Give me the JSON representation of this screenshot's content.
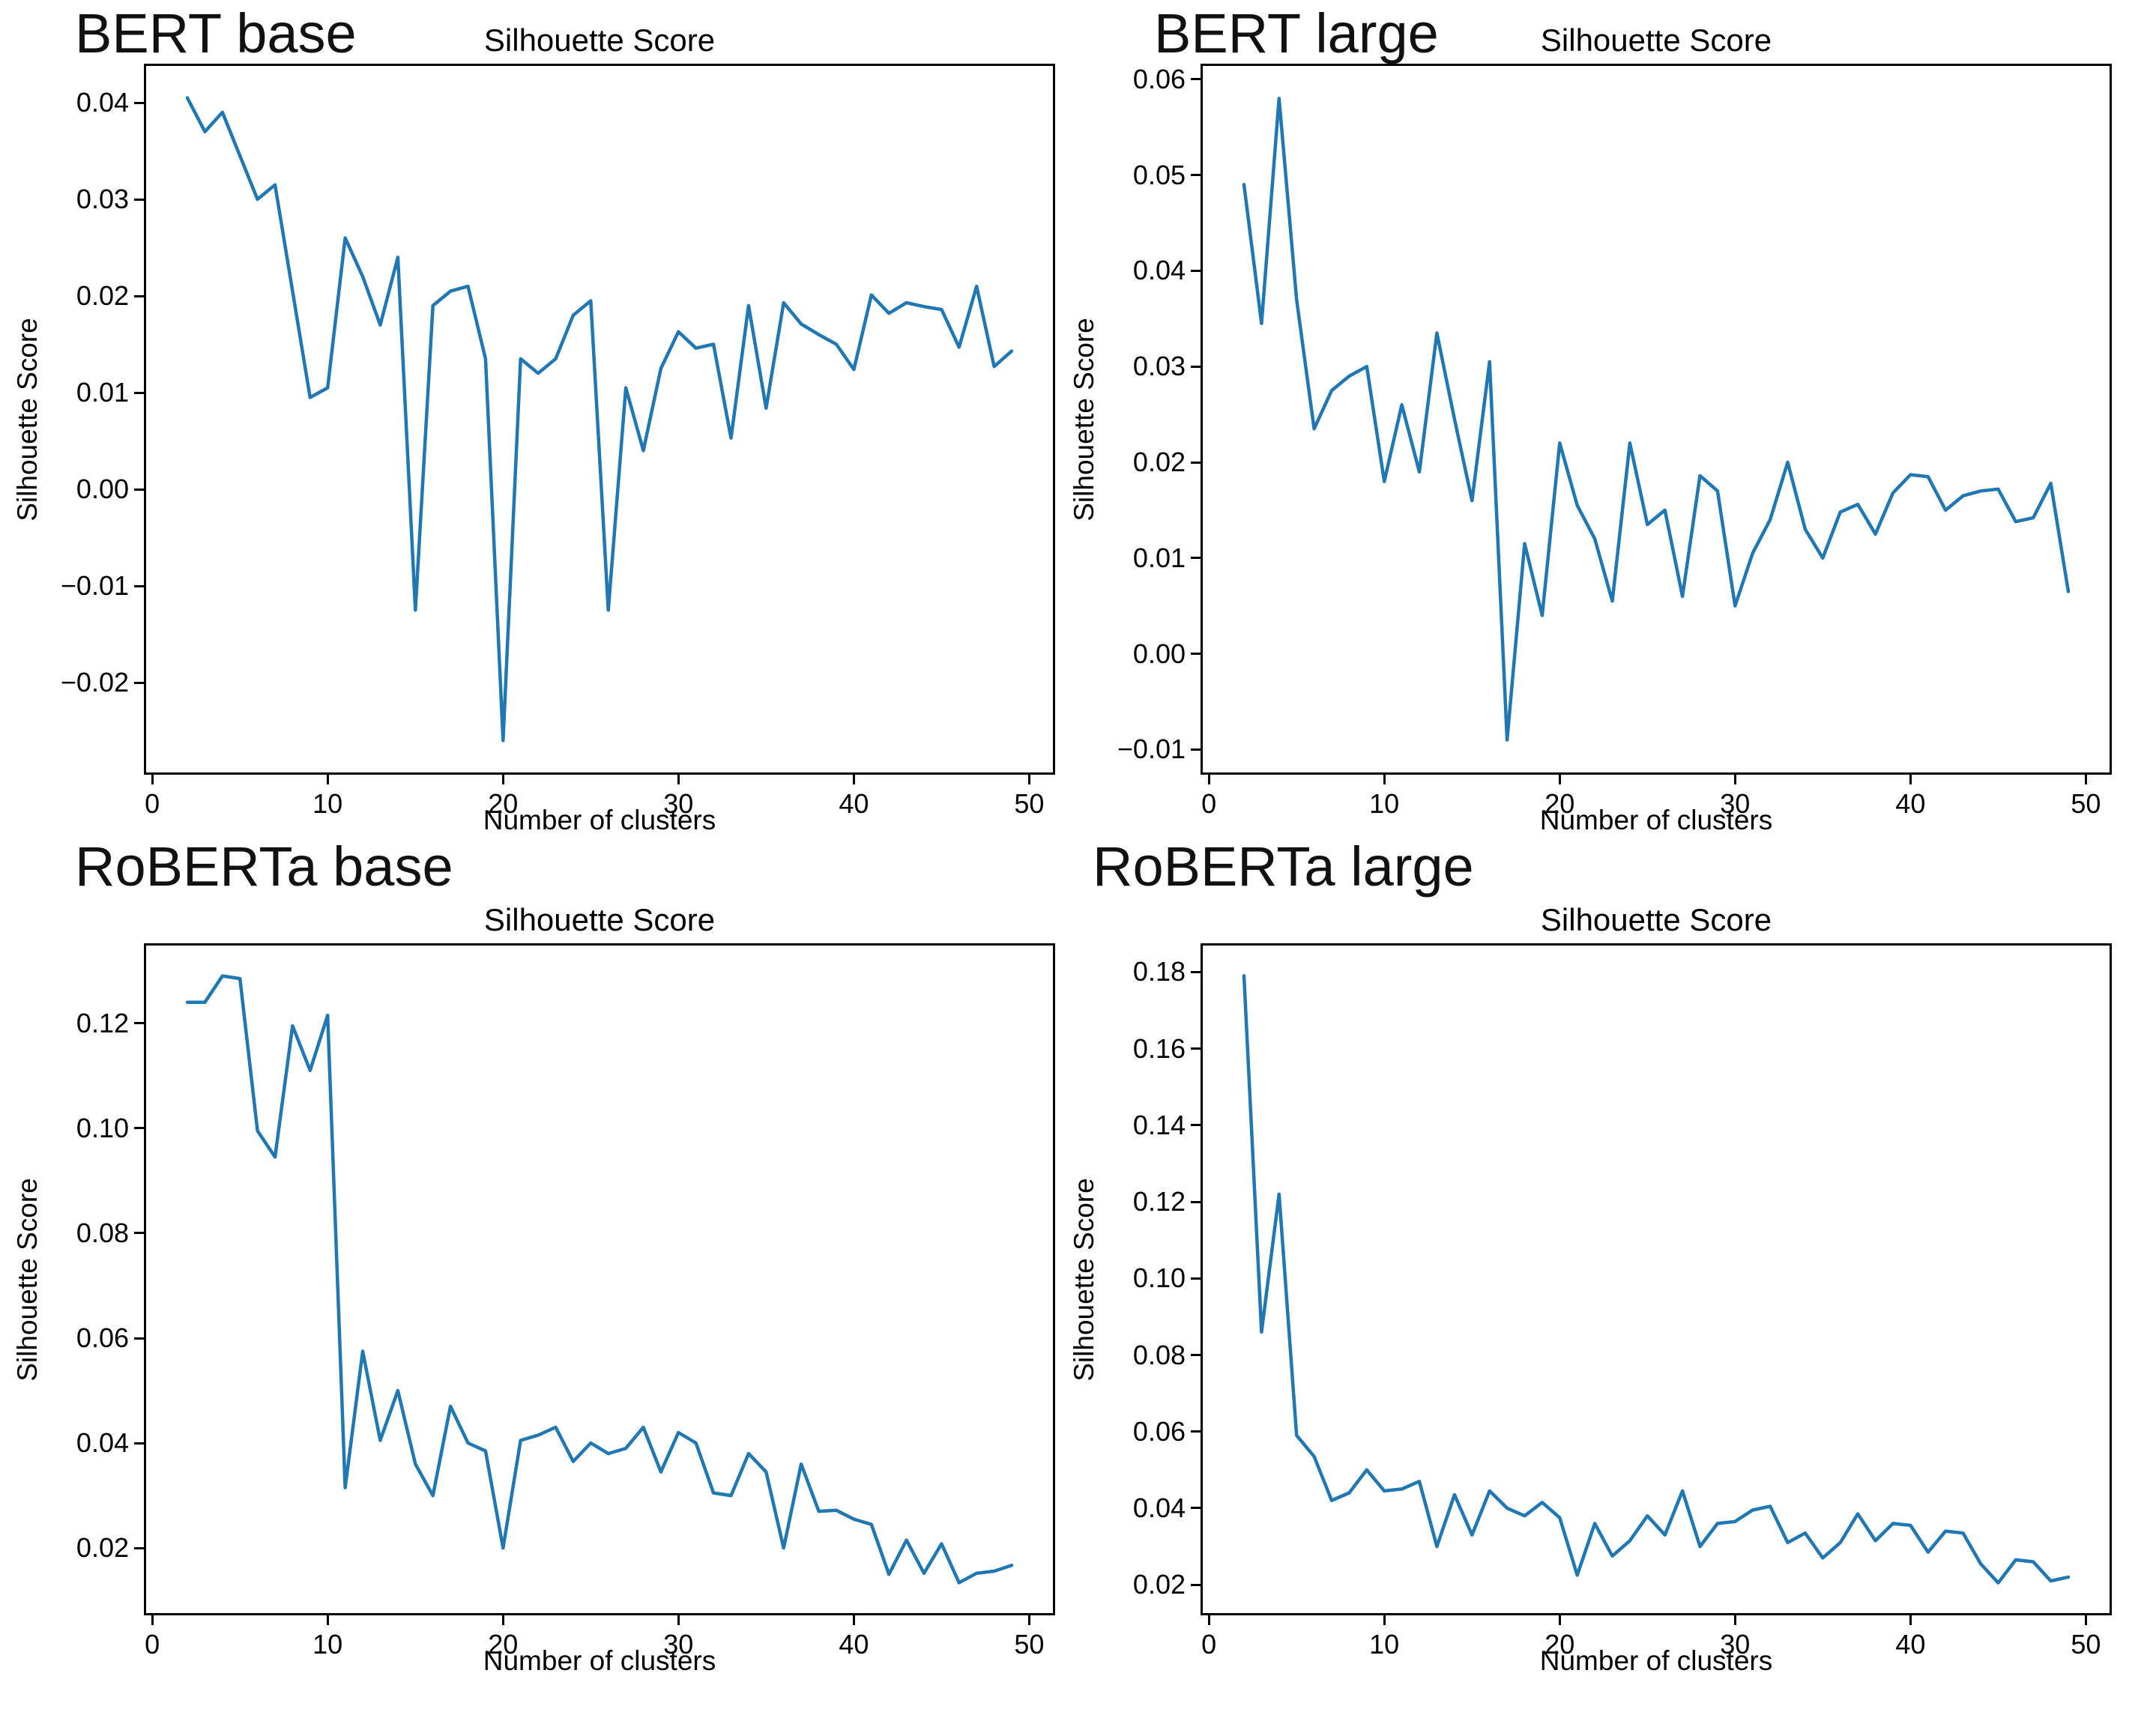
{
  "page": {
    "background_color": "#ffffff",
    "text_color": "#000000",
    "line_color": "#1f77b4"
  },
  "chart_data": [
    {
      "type": "line",
      "model_title": "BERT base",
      "title": "Silhouette Score",
      "xlabel": "Number of clusters",
      "ylabel": "Silhouette Score",
      "grid": false,
      "legend": "none",
      "line_color": "#1f77b4",
      "xlim": [
        -0.35,
        51.35
      ],
      "ylim": [
        -0.0293,
        0.0438
      ],
      "xticks": [
        0,
        10,
        20,
        30,
        40,
        50
      ],
      "xtick_labels": [
        "0",
        "10",
        "20",
        "30",
        "40",
        "50"
      ],
      "yticks": [
        0.04,
        0.03,
        0.02,
        0.01,
        0.0,
        -0.01,
        -0.02
      ],
      "ytick_labels": [
        "0.04",
        "0.03",
        "0.02",
        "0.01",
        "0.00",
        "−0.01",
        "−0.02"
      ],
      "x": [
        2,
        3,
        4,
        5,
        6,
        7,
        8,
        9,
        10,
        11,
        12,
        13,
        14,
        15,
        16,
        17,
        18,
        19,
        20,
        21,
        22,
        23,
        24,
        25,
        26,
        27,
        28,
        29,
        30,
        31,
        32,
        33,
        34,
        35,
        36,
        37,
        38,
        39,
        40,
        41,
        42,
        43,
        44,
        45,
        46,
        47,
        48,
        49
      ],
      "y": [
        0.0405,
        0.037,
        0.039,
        0.0345,
        0.03,
        0.0315,
        0.0205,
        0.0095,
        0.0105,
        0.026,
        0.022,
        0.017,
        0.024,
        -0.0125,
        0.019,
        0.0205,
        0.021,
        0.0135,
        -0.026,
        0.0135,
        0.012,
        0.0135,
        0.018,
        0.0195,
        -0.0125,
        0.0105,
        0.004,
        0.0125,
        0.0163,
        0.0146,
        0.015,
        0.0053,
        0.019,
        0.0084,
        0.0193,
        0.0171,
        0.016,
        0.015,
        0.0124,
        0.0201,
        0.0182,
        0.0193,
        0.0189,
        0.0186,
        0.0147,
        0.021,
        0.0127,
        0.0143
      ]
    },
    {
      "type": "line",
      "model_title": "BERT large",
      "title": "Silhouette Score",
      "xlabel": "Number of clusters",
      "ylabel": "Silhouette Score",
      "grid": false,
      "legend": "none",
      "line_color": "#1f77b4",
      "xlim": [
        -0.35,
        51.35
      ],
      "ylim": [
        -0.0124,
        0.0614
      ],
      "xticks": [
        0,
        10,
        20,
        30,
        40,
        50
      ],
      "xtick_labels": [
        "0",
        "10",
        "20",
        "30",
        "40",
        "50"
      ],
      "yticks": [
        0.06,
        0.05,
        0.04,
        0.03,
        0.02,
        0.01,
        0.0,
        -0.01
      ],
      "ytick_labels": [
        "0.06",
        "0.05",
        "0.04",
        "0.03",
        "0.02",
        "0.01",
        "0.00",
        "−0.01"
      ],
      "x": [
        2,
        3,
        4,
        5,
        6,
        7,
        8,
        9,
        10,
        11,
        12,
        13,
        14,
        15,
        16,
        17,
        18,
        19,
        20,
        21,
        22,
        23,
        24,
        25,
        26,
        27,
        28,
        29,
        30,
        31,
        32,
        33,
        34,
        35,
        36,
        37,
        38,
        39,
        40,
        41,
        42,
        43,
        44,
        45,
        46,
        47,
        48,
        49
      ],
      "y": [
        0.049,
        0.0345,
        0.058,
        0.037,
        0.0235,
        0.0275,
        0.029,
        0.03,
        0.018,
        0.026,
        0.019,
        0.0335,
        0.0245,
        0.016,
        0.0305,
        -0.009,
        0.0115,
        0.004,
        0.022,
        0.0155,
        0.012,
        0.0055,
        0.022,
        0.0135,
        0.015,
        0.006,
        0.0186,
        0.017,
        0.005,
        0.0105,
        0.014,
        0.02,
        0.013,
        0.01,
        0.0148,
        0.0156,
        0.0125,
        0.0168,
        0.0187,
        0.0185,
        0.015,
        0.0165,
        0.017,
        0.0172,
        0.0138,
        0.0142,
        0.0178,
        0.0065
      ]
    },
    {
      "type": "line",
      "model_title": "RoBERTa base",
      "title": "Silhouette Score",
      "xlabel": "Number of clusters",
      "ylabel": "Silhouette Score",
      "grid": false,
      "legend": "none",
      "line_color": "#1f77b4",
      "xlim": [
        -0.35,
        51.35
      ],
      "ylim": [
        0.0076,
        0.1348
      ],
      "xticks": [
        0,
        10,
        20,
        30,
        40,
        50
      ],
      "xtick_labels": [
        "0",
        "10",
        "20",
        "30",
        "40",
        "50"
      ],
      "yticks": [
        0.12,
        0.1,
        0.08,
        0.06,
        0.04,
        0.02
      ],
      "ytick_labels": [
        "0.12",
        "0.10",
        "0.08",
        "0.06",
        "0.04",
        "0.02"
      ],
      "x": [
        2,
        3,
        4,
        5,
        6,
        7,
        8,
        9,
        10,
        11,
        12,
        13,
        14,
        15,
        16,
        17,
        18,
        19,
        20,
        21,
        22,
        23,
        24,
        25,
        26,
        27,
        28,
        29,
        30,
        31,
        32,
        33,
        34,
        35,
        36,
        37,
        38,
        39,
        40,
        41,
        42,
        43,
        44,
        45,
        46,
        47,
        48,
        49
      ],
      "y": [
        0.124,
        0.124,
        0.129,
        0.1285,
        0.0995,
        0.0945,
        0.1195,
        0.111,
        0.1215,
        0.0315,
        0.0575,
        0.0405,
        0.05,
        0.036,
        0.03,
        0.047,
        0.04,
        0.0385,
        0.02,
        0.0405,
        0.0415,
        0.043,
        0.0365,
        0.04,
        0.038,
        0.039,
        0.043,
        0.0345,
        0.042,
        0.04,
        0.0305,
        0.03,
        0.038,
        0.0345,
        0.02,
        0.036,
        0.027,
        0.0272,
        0.0255,
        0.0245,
        0.015,
        0.0215,
        0.0152,
        0.0208,
        0.0134,
        0.0152,
        0.0156,
        0.0167
      ]
    },
    {
      "type": "line",
      "model_title": "RoBERTa large",
      "title": "Silhouette Score",
      "xlabel": "Number of clusters",
      "ylabel": "Silhouette Score",
      "grid": false,
      "legend": "none",
      "line_color": "#1f77b4",
      "xlim": [
        -0.35,
        51.35
      ],
      "ylim": [
        0.0126,
        0.1869
      ],
      "xticks": [
        0,
        10,
        20,
        30,
        40,
        50
      ],
      "xtick_labels": [
        "0",
        "10",
        "20",
        "30",
        "40",
        "50"
      ],
      "yticks": [
        0.18,
        0.16,
        0.14,
        0.12,
        0.1,
        0.08,
        0.06,
        0.04,
        0.02
      ],
      "ytick_labels": [
        "0.18",
        "0.16",
        "0.14",
        "0.12",
        "0.10",
        "0.08",
        "0.06",
        "0.04",
        "0.02"
      ],
      "x": [
        2,
        3,
        4,
        5,
        6,
        7,
        8,
        9,
        10,
        11,
        12,
        13,
        14,
        15,
        16,
        17,
        18,
        19,
        20,
        21,
        22,
        23,
        24,
        25,
        26,
        27,
        28,
        29,
        30,
        31,
        32,
        33,
        34,
        35,
        36,
        37,
        38,
        39,
        40,
        41,
        42,
        43,
        44,
        45,
        46,
        47,
        48,
        49
      ],
      "y": [
        0.179,
        0.086,
        0.122,
        0.059,
        0.0535,
        0.042,
        0.044,
        0.05,
        0.0445,
        0.045,
        0.047,
        0.03,
        0.0435,
        0.033,
        0.0445,
        0.04,
        0.038,
        0.0415,
        0.0375,
        0.0225,
        0.036,
        0.0275,
        0.0315,
        0.038,
        0.033,
        0.0445,
        0.03,
        0.036,
        0.0365,
        0.0395,
        0.0405,
        0.031,
        0.0335,
        0.027,
        0.031,
        0.0385,
        0.0315,
        0.036,
        0.0355,
        0.0285,
        0.034,
        0.0335,
        0.0255,
        0.0205,
        0.0265,
        0.026,
        0.021,
        0.022
      ]
    }
  ]
}
